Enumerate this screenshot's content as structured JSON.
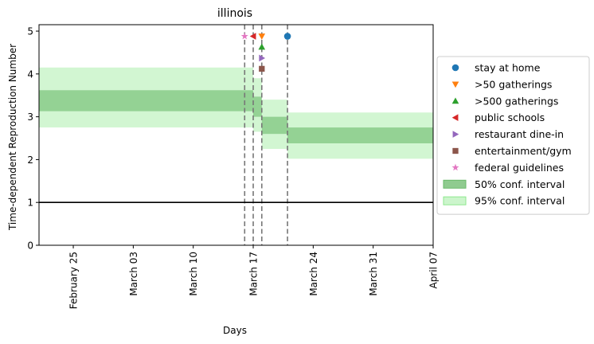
{
  "chart_data": {
    "type": "line",
    "title": "illinois",
    "xlabel": "Days",
    "ylabel": "Time-dependent Reproduction Number",
    "ylim": [
      0,
      5.15
    ],
    "xlim": [
      "2020-02-21",
      "2020-04-07"
    ],
    "x_ticks": [
      {
        "date": "2020-02-25",
        "label": "February 25"
      },
      {
        "date": "2020-03-03",
        "label": "March 03"
      },
      {
        "date": "2020-03-10",
        "label": "March 10"
      },
      {
        "date": "2020-03-17",
        "label": "March 17"
      },
      {
        "date": "2020-03-24",
        "label": "March 24"
      },
      {
        "date": "2020-03-31",
        "label": "March 31"
      },
      {
        "date": "2020-04-07",
        "label": "April 07"
      }
    ],
    "y_ticks": [
      0,
      1,
      2,
      3,
      4,
      5
    ],
    "reference_line": {
      "y": 1,
      "color": "#000000"
    },
    "intervention_dates": [
      "2020-03-16",
      "2020-03-17",
      "2020-03-18",
      "2020-03-21"
    ],
    "segments": [
      {
        "start": "2020-02-21",
        "end": "2020-03-17",
        "ci50": [
          3.13,
          3.62
        ],
        "ci95": [
          2.75,
          4.15
        ]
      },
      {
        "start": "2020-03-17",
        "end": "2020-03-18",
        "ci50": [
          3.0,
          3.47
        ],
        "ci95": [
          2.65,
          3.9
        ]
      },
      {
        "start": "2020-03-18",
        "end": "2020-03-21",
        "ci50": [
          2.6,
          3.0
        ],
        "ci95": [
          2.25,
          3.4
        ]
      },
      {
        "start": "2020-03-21",
        "end": "2020-04-07",
        "ci50": [
          2.38,
          2.75
        ],
        "ci95": [
          2.02,
          3.1
        ]
      }
    ],
    "series": [
      {
        "name": "stay at home",
        "marker": "circle",
        "color": "#1f77b4",
        "x": "2020-03-21",
        "y": 4.88
      },
      {
        "name": ">50 gatherings",
        "marker": "triangle-down",
        "color": "#ff7f0e",
        "x": "2020-03-18",
        "y": 4.88
      },
      {
        "name": ">500 gatherings",
        "marker": "triangle-up",
        "color": "#2ca02c",
        "x": "2020-03-18",
        "y": 4.63
      },
      {
        "name": "public schools",
        "marker": "triangle-left",
        "color": "#d62728",
        "x": "2020-03-17",
        "y": 4.88
      },
      {
        "name": "restaurant dine-in",
        "marker": "triangle-right",
        "color": "#9467bd",
        "x": "2020-03-18",
        "y": 4.37
      },
      {
        "name": "entertainment/gym",
        "marker": "square",
        "color": "#8c564b",
        "x": "2020-03-18",
        "y": 4.12
      },
      {
        "name": "federal guidelines",
        "marker": "star",
        "color": "#e377c2",
        "x": "2020-03-16",
        "y": 4.88
      }
    ],
    "bands": [
      {
        "name": "50% conf. interval",
        "color": "#6aba6a"
      },
      {
        "name": "95% conf. interval",
        "color": "#8ee88e"
      }
    ],
    "legend_position": "right"
  }
}
